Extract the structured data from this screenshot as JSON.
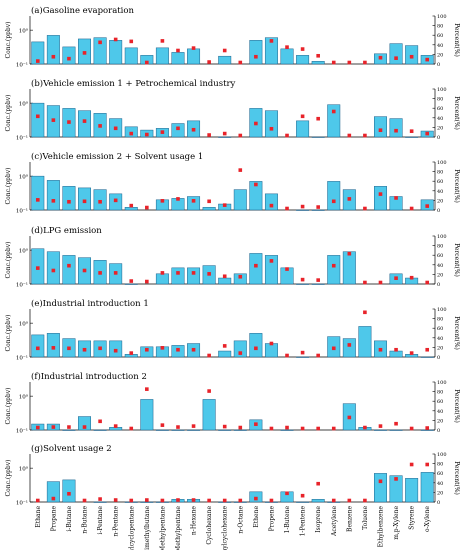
{
  "chart_data": {
    "type": "bar",
    "categories": [
      "Ethane",
      "Propane",
      "i-Butane",
      "n-Butane",
      "i-Pentane",
      "n-Pentane",
      "Methylcyclopentane",
      "2,3-Dimethylbutane",
      "2-Methylpentane",
      "3-Methylpentane",
      "n-Hexane",
      "Cyclohexane",
      "Methylcyclohexane",
      "n-Octane",
      "Ethene",
      "Propene",
      "1-Butene",
      "1-Pentene",
      "Isoprene",
      "Acetylene",
      "Benzene",
      "Toluene",
      "Ethylbenzene",
      "m,p-Xylene",
      "Styrene",
      "o-Xylene"
    ],
    "ylabel": "Conc.(ppbv)",
    "y2label": "Percent(%)",
    "ylim": [
      0.1,
      1
    ],
    "y2lim": [
      0,
      100
    ],
    "yscale": "log",
    "yticks": [
      "10⁻¹",
      "10⁰"
    ],
    "y2ticks": [
      "0",
      "20",
      "40",
      "60",
      "80",
      "100"
    ],
    "colors": {
      "bar": "#4ec8ea",
      "bar_edge": "#1a5f8a",
      "marker": "#e8232a"
    },
    "series_names": [
      "Conc.",
      "Percent"
    ],
    "panels": [
      {
        "title": "(a)Gasoline evaporation",
        "conc": [
          0.45,
          0.7,
          0.32,
          0.55,
          0.6,
          0.5,
          0.3,
          0.18,
          0.3,
          0.22,
          0.28,
          0,
          0.17,
          0,
          0.5,
          0.6,
          0.28,
          0.18,
          0.12,
          0,
          0,
          0,
          0.2,
          0.4,
          0.35,
          0.18
        ],
        "percent": [
          3,
          12,
          8,
          20,
          42,
          48,
          44,
          0,
          45,
          25,
          30,
          1,
          25,
          0,
          12,
          45,
          32,
          28,
          14,
          0,
          0,
          0,
          10,
          9,
          12,
          6
        ]
      },
      {
        "title": "(b)Vehicle emission 1 + Petrochemical industry",
        "conc": [
          1.0,
          0.85,
          0.7,
          0.6,
          0.5,
          0.35,
          0.2,
          0.16,
          0.18,
          0.25,
          0.3,
          0,
          0.05,
          0,
          0.7,
          0.6,
          0,
          0.3,
          0.1,
          0.9,
          0,
          0,
          0.4,
          0.35,
          0.08,
          0.15
        ],
        "percent": [
          40,
          32,
          28,
          30,
          20,
          15,
          4,
          2,
          7,
          15,
          12,
          1,
          4,
          0,
          25,
          14,
          0,
          40,
          35,
          50,
          0,
          0,
          11,
          10,
          9,
          4
        ]
      },
      {
        "title": "(c)Vehicle emission 2 + Solvent usage 1",
        "conc": [
          1.0,
          0.75,
          0.5,
          0.45,
          0.4,
          0.3,
          0.12,
          0,
          0.2,
          0.22,
          0.25,
          0.12,
          0.15,
          0.4,
          0.7,
          0.3,
          0,
          0.05,
          0.08,
          0.7,
          0.4,
          0,
          0.5,
          0.25,
          0,
          0.2
        ],
        "percent": [
          18,
          16,
          14,
          15,
          14,
          17,
          6,
          2,
          16,
          20,
          16,
          15,
          7,
          80,
          50,
          6,
          0,
          4,
          3,
          15,
          20,
          0,
          30,
          22,
          0,
          5
        ]
      },
      {
        "title": "(d)LPG emission",
        "conc": [
          1.1,
          0.9,
          0.7,
          0.6,
          0.5,
          0.4,
          0.08,
          0,
          0.2,
          0.3,
          0.3,
          0.35,
          0.15,
          0.2,
          0.8,
          0.7,
          0.3,
          0.08,
          0.1,
          0.7,
          0.9,
          0,
          0,
          0.2,
          0.15,
          0
        ],
        "percent": [
          30,
          25,
          35,
          25,
          20,
          20,
          3,
          2,
          20,
          20,
          20,
          18,
          13,
          12,
          35,
          45,
          28,
          6,
          5,
          35,
          60,
          0,
          0,
          9,
          10,
          0
        ]
      },
      {
        "title": "(e)Industrial introduction 1",
        "conc": [
          0.45,
          0.5,
          0.35,
          0.3,
          0.3,
          0.3,
          0.12,
          0.2,
          0.2,
          0.22,
          0.25,
          0,
          0.15,
          0.3,
          0.5,
          0.25,
          0,
          0.08,
          0,
          0.4,
          0.35,
          0.8,
          0.3,
          0.15,
          0.12,
          0.1
        ],
        "percent": [
          15,
          16,
          15,
          12,
          15,
          10,
          5,
          12,
          16,
          12,
          12,
          0,
          20,
          5,
          15,
          25,
          0,
          6,
          0,
          15,
          22,
          90,
          12,
          12,
          5,
          12
        ]
      },
      {
        "title": "(f)Industrial introduction 2",
        "conc": [
          0.15,
          0.15,
          0.1,
          0.25,
          0.03,
          0.12,
          0,
          0.8,
          0.08,
          0.01,
          0.02,
          0.8,
          0.02,
          0.02,
          0.2,
          0,
          0.08,
          0,
          0,
          0,
          0.6,
          0.12,
          0.03,
          0.05,
          0,
          0.01
        ],
        "percent": [
          2,
          3,
          3,
          3,
          15,
          5,
          0,
          82,
          7,
          3,
          5,
          78,
          4,
          2,
          9,
          0,
          2,
          0,
          0,
          0,
          23,
          2,
          5,
          10,
          0,
          1
        ]
      },
      {
        "title": "(g)Solvent usage 2",
        "conc": [
          0,
          0.4,
          0.45,
          0,
          0.1,
          0,
          0.06,
          0.1,
          0.08,
          0.12,
          0.12,
          0,
          0.04,
          0.08,
          0.2,
          0.07,
          0.2,
          0.08,
          0.12,
          0.1,
          0,
          0,
          0.7,
          0.6,
          0.5,
          0.75
        ],
        "percent": [
          0,
          4,
          14,
          0,
          3,
          1,
          0,
          1,
          0,
          1,
          1,
          0,
          0,
          0,
          4,
          0,
          15,
          10,
          35,
          0,
          0,
          0,
          40,
          45,
          75,
          75
        ]
      }
    ]
  }
}
